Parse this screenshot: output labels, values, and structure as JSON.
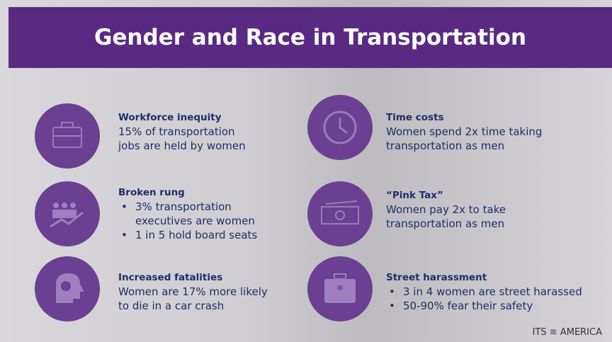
{
  "header": {
    "title": "Gender and Race in Transportation"
  },
  "items": [
    {
      "heading": "Workforce inequity",
      "lines": [
        "15% of transportation",
        "jobs are held by women"
      ]
    },
    {
      "heading": "Time costs",
      "lines": [
        "Women spend 2x time taking",
        "transportation as men"
      ]
    },
    {
      "heading": "Broken rung",
      "bullets": [
        [
          "3% transportation",
          "executives are women"
        ],
        [
          "1 in 5 hold board seats"
        ]
      ]
    },
    {
      "heading": "“Pink Tax”",
      "lines": [
        "Women pay 2x to take",
        "transportation as men"
      ]
    },
    {
      "heading": "Increased fatalities",
      "lines": [
        "Women are 17% more likely",
        "to die in a car crash"
      ]
    },
    {
      "heading": "Street harassment",
      "bullets": [
        [
          "3 in 4 women are street harassed"
        ],
        [
          "50-90% fear their safety"
        ]
      ]
    }
  ],
  "logo": {
    "left": "ITS",
    "right": "AMERICA"
  }
}
